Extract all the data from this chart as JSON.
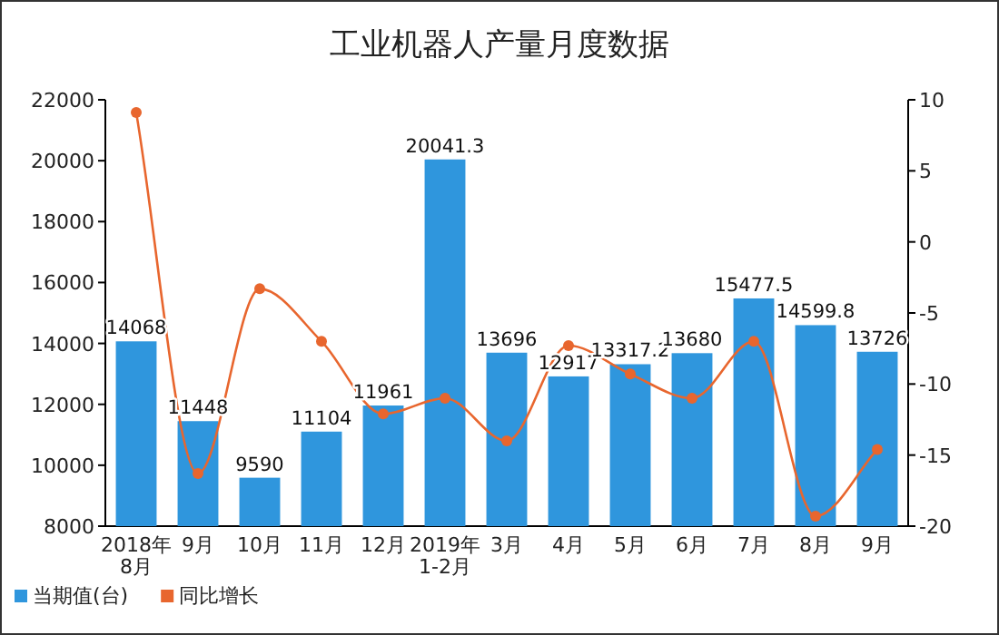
{
  "chart_data": {
    "type": "bar",
    "title": "工业机器人产量月度数据",
    "categories": [
      "2018年 8月",
      "9月",
      "10月",
      "11月",
      "12月",
      "2019年 1-2月",
      "3月",
      "4月",
      "5月",
      "6月",
      "7月",
      "8月",
      "9月"
    ],
    "series": [
      {
        "name": "当期值(台)",
        "color": "#2f96dd",
        "values": [
          14068,
          11448,
          9590,
          11104,
          11961,
          20041.3,
          13696,
          12917,
          13317.2,
          13680,
          15477.5,
          14599.8,
          13726
        ],
        "value_labels": [
          "14068",
          "11448",
          "9590",
          "11104",
          "11961",
          "20041.3",
          "13696",
          "12917",
          "13317.2",
          "13680",
          "15477.5",
          "14599.8",
          "13726"
        ]
      },
      {
        "name": "同比增长",
        "type": "line",
        "axis": "y2",
        "color": "#e8662e",
        "marker": "circle",
        "values": [
          9.1,
          -16.3,
          -3.3,
          -7.0,
          -12.1,
          -11.0,
          -14.0,
          -7.3,
          -9.3,
          -11.0,
          -7.0,
          -19.3,
          -14.6
        ]
      }
    ],
    "ylim": [
      8000,
      22000
    ],
    "yticks": [
      8000,
      10000,
      12000,
      14000,
      16000,
      18000,
      20000,
      22000
    ],
    "y2lim": [
      -20,
      10
    ],
    "y2ticks": [
      -20,
      -15,
      -10,
      -5,
      0,
      5,
      10
    ],
    "grid": false,
    "legend": "bottom left"
  }
}
